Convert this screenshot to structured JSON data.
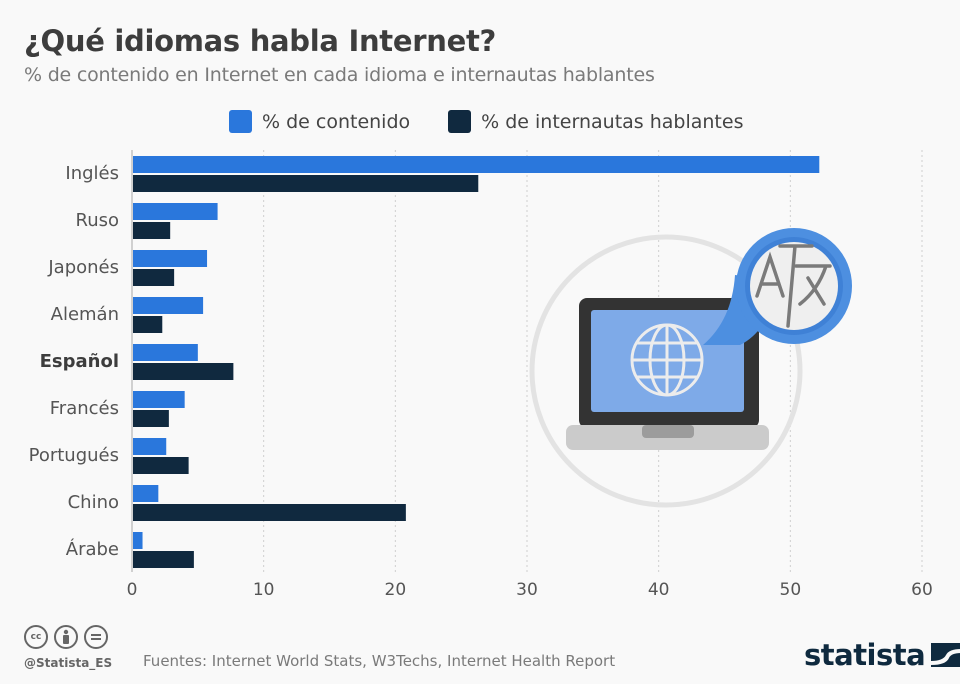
{
  "header": {
    "title": "¿Qué idiomas habla Internet?",
    "subtitle": "% de contenido en Internet en cada idioma e internautas hablantes"
  },
  "legend": [
    {
      "label": "% de contenido",
      "color": "#2a77dc"
    },
    {
      "label": "% de internautas hablantes",
      "color": "#10293f"
    }
  ],
  "chart_data": {
    "type": "bar",
    "orientation": "horizontal",
    "title": "¿Qué idiomas habla Internet?",
    "subtitle": "% de contenido en Internet en cada idioma e internautas hablantes",
    "categories": [
      "Inglés",
      "Ruso",
      "Japonés",
      "Alemán",
      "Español",
      "Francés",
      "Portugués",
      "Chino",
      "Árabe"
    ],
    "highlight_category": "Español",
    "series": [
      {
        "name": "% de contenido",
        "color": "#2a77dc",
        "values": [
          52.2,
          6.5,
          5.7,
          5.4,
          5.0,
          4.0,
          2.6,
          2.0,
          0.8
        ]
      },
      {
        "name": "% de internautas hablantes",
        "color": "#10293f",
        "values": [
          26.3,
          2.9,
          3.2,
          2.3,
          7.7,
          2.8,
          4.3,
          20.8,
          4.7
        ]
      }
    ],
    "xlim": [
      0,
      60
    ],
    "xticks": [
      "0",
      "10",
      "20",
      "30",
      "40",
      "50",
      "60"
    ],
    "xtick_values": [
      0,
      10,
      20,
      30,
      40,
      50,
      60
    ],
    "grid": true,
    "legend_position": "top"
  },
  "footer": {
    "handle": "@Statista_ES",
    "source": "Fuentes: Internet World Stats, W3Techs, Internet Health Report",
    "logo": "statista",
    "license_icons": [
      "cc-icon",
      "by-icon",
      "nd-icon"
    ]
  },
  "illustration": {
    "translate_letters": [
      "A",
      "文"
    ]
  }
}
